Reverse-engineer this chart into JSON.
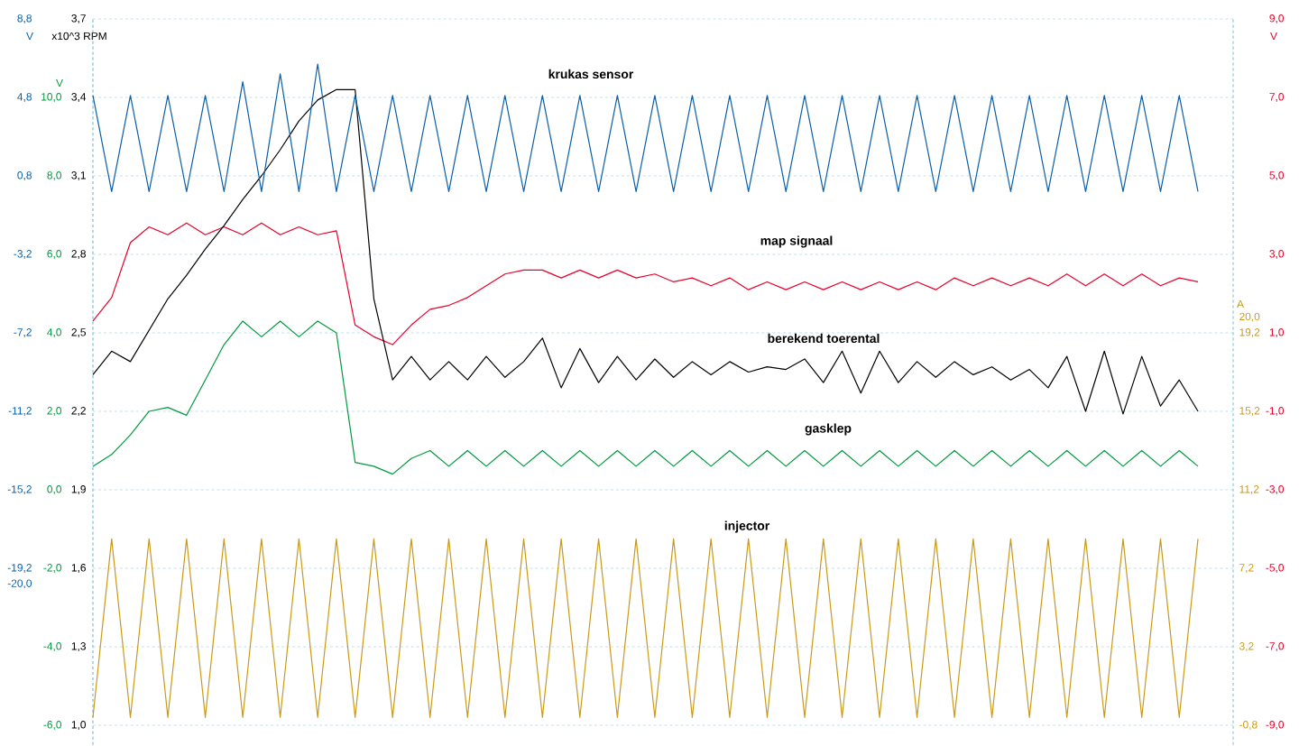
{
  "chart_data": [
    {
      "type": "line",
      "grid": true,
      "categories": [
        null,
        null,
        null,
        null,
        null,
        null,
        null,
        null,
        null,
        null,
        null,
        null,
        null,
        null,
        null,
        null,
        null,
        null,
        null,
        null,
        null,
        null,
        null,
        null,
        null,
        null,
        null,
        null,
        null,
        null,
        null,
        null,
        null,
        null,
        null,
        null,
        null,
        null,
        null,
        null,
        null,
        null,
        null,
        null,
        null,
        null,
        null,
        null,
        null,
        null,
        null,
        null,
        null,
        null,
        null,
        null,
        null,
        null,
        null,
        null
      ],
      "ylabel": "x10^3 RPM",
      "y2label": "V",
      "y3label": "V",
      "ylim": [
        0.925,
        3.7
      ],
      "yticks": [
        {
          "value": 3.7,
          "label": "3,7"
        },
        {
          "value": 3.4,
          "label": "3,4"
        },
        {
          "value": 3.1,
          "label": "3,1"
        },
        {
          "value": 2.8,
          "label": "2,8"
        },
        {
          "value": 2.5,
          "label": "2,5"
        },
        {
          "value": 2.2,
          "label": "2,2"
        },
        {
          "value": 1.9,
          "label": "1,9"
        },
        {
          "value": 1.6,
          "label": "1,6"
        },
        {
          "value": 1.3,
          "label": "1,3"
        },
        {
          "value": 1.0,
          "label": "1,0"
        }
      ],
      "y2lim": [
        -9.5,
        9.0
      ],
      "y2ticks": [
        {
          "value": 9.0,
          "label": "9,0"
        },
        {
          "value": 7.0,
          "label": "7,0"
        },
        {
          "value": 5.0,
          "label": "5,0"
        },
        {
          "value": 3.0,
          "label": "3,0"
        },
        {
          "value": 1.0,
          "label": "1,0"
        },
        {
          "value": -1.0,
          "label": "-1,0"
        },
        {
          "value": -3.0,
          "label": "-3,0"
        },
        {
          "value": -5.0,
          "label": "-5,0"
        },
        {
          "value": -7.0,
          "label": "-7,0"
        },
        {
          "value": -9.0,
          "label": "-9,0"
        }
      ],
      "y3lim": [
        -6.5,
        12.0
      ],
      "y3ticks": [
        {
          "value": 10.0,
          "label": "10,0"
        },
        {
          "value": 8.0,
          "label": "8,0"
        },
        {
          "value": 6.0,
          "label": "6,0"
        },
        {
          "value": 4.0,
          "label": "4,0"
        },
        {
          "value": 2.0,
          "label": "2,0"
        },
        {
          "value": 0.0,
          "label": "0,0"
        },
        {
          "value": -2.0,
          "label": "-2,0"
        },
        {
          "value": -4.0,
          "label": "-4,0"
        },
        {
          "value": -6.0,
          "label": "-6,0"
        }
      ],
      "series": [
        {
          "name": "map signaal",
          "color": "#e8002a",
          "axis": "y2",
          "values": [
            1.3,
            1.9,
            3.3,
            3.7,
            3.5,
            3.8,
            3.5,
            3.7,
            3.5,
            3.8,
            3.5,
            3.7,
            3.5,
            3.6,
            1.2,
            0.9,
            0.7,
            1.2,
            1.6,
            1.7,
            1.9,
            2.2,
            2.5,
            2.6,
            2.6,
            2.4,
            2.6,
            2.4,
            2.6,
            2.4,
            2.5,
            2.3,
            2.4,
            2.2,
            2.4,
            2.1,
            2.3,
            2.1,
            2.3,
            2.1,
            2.3,
            2.1,
            2.3,
            2.1,
            2.3,
            2.1,
            2.4,
            2.2,
            2.4,
            2.2,
            2.4,
            2.2,
            2.5,
            2.2,
            2.5,
            2.2,
            2.5,
            2.2,
            2.4,
            2.3
          ]
        },
        {
          "name": "gasklep",
          "color": "#009a3e",
          "axis": "y3",
          "values": [
            0.6,
            0.9,
            1.4,
            2.0,
            2.1,
            1.9,
            2.8,
            3.7,
            4.3,
            3.9,
            4.3,
            3.9,
            4.3,
            4.0,
            0.7,
            0.6,
            0.4,
            0.8,
            1.0,
            0.6,
            1.0,
            0.6,
            1.0,
            0.6,
            1.0,
            0.6,
            1.0,
            0.6,
            1.0,
            0.6,
            1.0,
            0.6,
            1.0,
            0.6,
            1.0,
            0.6,
            1.0,
            0.6,
            1.0,
            0.6,
            1.0,
            0.6,
            1.0,
            0.6,
            1.0,
            0.6,
            1.0,
            0.6,
            1.0,
            0.6,
            1.0,
            0.6,
            1.0,
            0.6,
            1.0,
            0.6,
            1.0,
            0.6,
            1.0,
            0.6
          ]
        },
        {
          "name": "berekend toerental",
          "color": "#000000",
          "axis": "y",
          "values": [
            2.34,
            2.43,
            2.39,
            2.51,
            2.63,
            2.72,
            2.82,
            2.91,
            3.01,
            3.1,
            3.2,
            3.31,
            3.39,
            3.43,
            3.43,
            2.63,
            2.32,
            2.41,
            2.32,
            2.39,
            2.32,
            2.41,
            2.33,
            2.39,
            2.48,
            2.29,
            2.44,
            2.31,
            2.41,
            2.32,
            2.4,
            2.33,
            2.39,
            2.34,
            2.39,
            2.35,
            2.37,
            2.36,
            2.4,
            2.31,
            2.43,
            2.27,
            2.43,
            2.31,
            2.39,
            2.33,
            2.39,
            2.34,
            2.37,
            2.32,
            2.36,
            2.29,
            2.41,
            2.2,
            2.43,
            2.19,
            2.41,
            2.22,
            2.32,
            2.2
          ]
        }
      ]
    },
    {
      "type": "line",
      "categories": [
        null,
        null,
        null,
        null,
        null,
        null,
        null,
        null,
        null,
        null,
        null,
        null,
        null,
        null,
        null,
        null,
        null,
        null,
        null,
        null,
        null,
        null,
        null,
        null,
        null,
        null,
        null,
        null,
        null,
        null,
        null,
        null,
        null,
        null,
        null,
        null,
        null,
        null,
        null,
        null,
        null,
        null,
        null,
        null,
        null,
        null,
        null,
        null,
        null,
        null,
        null,
        null,
        null,
        null,
        null,
        null,
        null,
        null,
        null,
        null
      ],
      "ylabel": "V",
      "y2label": "A",
      "ylim": [
        -28.2,
        8.8
      ],
      "yticks": [
        {
          "value": 8.8,
          "label": "8,8"
        },
        {
          "value": 4.8,
          "label": "4,8"
        },
        {
          "value": 0.8,
          "label": "0,8"
        },
        {
          "value": -3.2,
          "label": "-3,2"
        },
        {
          "value": -7.2,
          "label": "-7,2"
        },
        {
          "value": -11.2,
          "label": "-11,2"
        },
        {
          "value": -15.2,
          "label": "-15,2"
        },
        {
          "value": -19.2,
          "label": "-19,2"
        },
        {
          "value": -20.0,
          "label": "-20,0"
        }
      ],
      "y2lim": [
        -1.8,
        35.2
      ],
      "y2ticks": [
        {
          "value": 20.0,
          "label": "20,0"
        },
        {
          "value": 19.2,
          "label": "19,2"
        },
        {
          "value": 15.2,
          "label": "15,2"
        },
        {
          "value": 11.2,
          "label": "11,2"
        },
        {
          "value": 7.2,
          "label": "7,2"
        },
        {
          "value": 3.2,
          "label": "3,2"
        },
        {
          "value": -0.8,
          "label": "-0,8"
        }
      ],
      "series": [
        {
          "name": "krukas sensor",
          "color": "#0a5fa8",
          "axis": "y",
          "values": [
            4.9,
            0.0,
            4.9,
            0.0,
            4.9,
            0.0,
            4.9,
            0.0,
            5.6,
            0.0,
            6.0,
            0.0,
            6.5,
            0.0,
            4.9,
            0.0,
            4.9,
            0.0,
            4.9,
            0.0,
            4.9,
            0.0,
            4.9,
            0.0,
            4.9,
            0.0,
            4.9,
            0.0,
            4.9,
            0.0,
            4.9,
            0.0,
            4.9,
            0.0,
            4.9,
            0.0,
            4.9,
            0.0,
            4.9,
            0.0,
            4.9,
            0.0,
            4.9,
            0.0,
            4.9,
            0.0,
            4.9,
            0.0,
            4.9,
            0.0,
            4.9,
            0.0,
            4.9,
            0.0,
            4.9,
            0.0,
            4.9,
            0.0,
            4.9,
            0.0
          ]
        },
        {
          "name": "injector",
          "color": "#c99a1a",
          "axis": "y2",
          "values": [
            -0.4,
            8.7,
            -0.4,
            8.7,
            -0.4,
            8.7,
            -0.4,
            8.7,
            -0.4,
            8.7,
            -0.4,
            8.7,
            -0.4,
            8.7,
            -0.4,
            8.7,
            -0.4,
            8.7,
            -0.4,
            8.7,
            -0.4,
            8.7,
            -0.4,
            8.7,
            -0.4,
            8.7,
            -0.4,
            8.7,
            -0.4,
            8.7,
            -0.4,
            8.7,
            -0.4,
            8.7,
            -0.4,
            8.7,
            -0.4,
            8.7,
            -0.4,
            8.7,
            -0.4,
            8.7,
            -0.4,
            8.7,
            -0.4,
            8.7,
            -0.4,
            8.7,
            -0.4,
            8.7,
            -0.4,
            8.7,
            -0.4,
            8.7,
            -0.4,
            8.7,
            -0.4,
            8.7,
            -0.4,
            8.7
          ]
        }
      ]
    }
  ]
}
